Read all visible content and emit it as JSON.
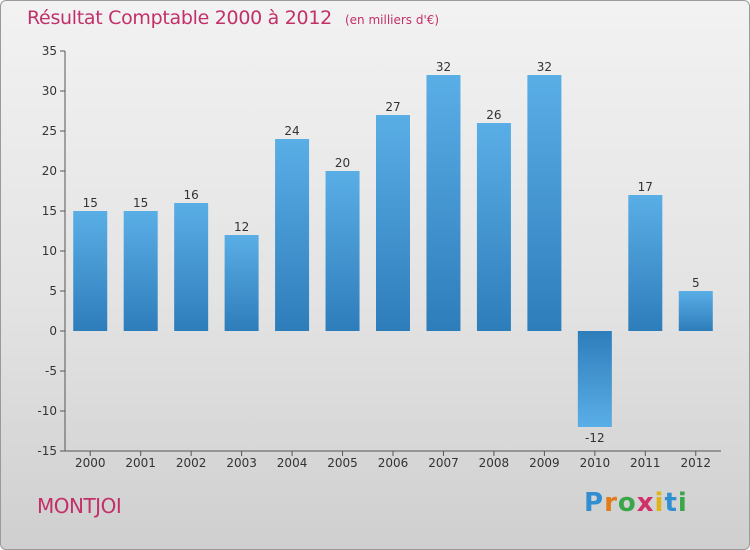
{
  "header": {
    "title": "Résultat Comptable 2000 à 2012",
    "unit": "(en milliers d'€)"
  },
  "footer": {
    "commune": "MONTJOI",
    "brand": "Proxiti"
  },
  "colors": {
    "bar_light": "#5aaee6",
    "bar_dark": "#2e7dbb",
    "title": "#c2306a"
  },
  "chart_data": {
    "type": "bar",
    "title": "Résultat Comptable 2000 à 2012",
    "ylabel": "en milliers d'€",
    "categories": [
      "2000",
      "2001",
      "2002",
      "2003",
      "2004",
      "2005",
      "2006",
      "2007",
      "2008",
      "2009",
      "2010",
      "2011",
      "2012"
    ],
    "values": [
      15,
      15,
      16,
      12,
      24,
      20,
      27,
      32,
      26,
      32,
      -12,
      17,
      5
    ],
    "ylim": [
      -15,
      35
    ],
    "yticks": [
      35,
      30,
      25,
      20,
      15,
      10,
      5,
      0,
      -5,
      -10,
      -15
    ],
    "grid": false
  }
}
